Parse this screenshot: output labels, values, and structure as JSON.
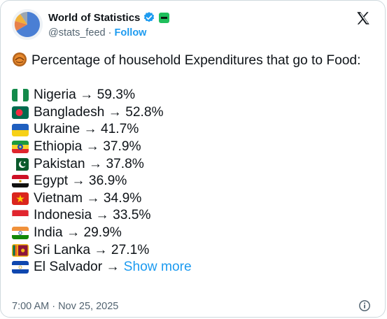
{
  "author": {
    "name": "World of Statistics",
    "handle": "@stats_feed",
    "separator": "·",
    "follow_label": "Follow"
  },
  "post": {
    "title": "Percentage of household Expenditures that go to Food:",
    "title_icon": "pie-plate-emoji",
    "items": [
      {
        "flag": "nigeria",
        "label": "Nigeria → 59.3%"
      },
      {
        "flag": "bangladesh",
        "label": "Bangladesh → 52.8%"
      },
      {
        "flag": "ukraine",
        "label": "Ukraine → 41.7%"
      },
      {
        "flag": "ethiopia",
        "label": "Ethiopia → 37.9%"
      },
      {
        "flag": "pakistan",
        "label": "Pakistan → 37.8%"
      },
      {
        "flag": "egypt",
        "label": "Egypt → 36.9%"
      },
      {
        "flag": "vietnam",
        "label": "Vietnam → 34.9%"
      },
      {
        "flag": "indonesia",
        "label": "Indonesia → 33.5%"
      },
      {
        "flag": "india",
        "label": "India → 29.9%"
      },
      {
        "flag": "sri-lanka",
        "label": "Sri Lanka → 27.1%"
      },
      {
        "flag": "el-salvador",
        "label": "El Salvador →"
      }
    ],
    "show_more_label": "Show more"
  },
  "meta": {
    "timestamp": "7:00 AM · Nov 25, 2025"
  },
  "icons": {
    "verified": "verified-badge-icon",
    "affiliate": "affiliate-badge-icon",
    "x_logo": "x-logo-icon",
    "info": "info-icon"
  },
  "colors": {
    "accent": "#1d9bf0",
    "muted": "#536471",
    "text": "#0f1419"
  }
}
